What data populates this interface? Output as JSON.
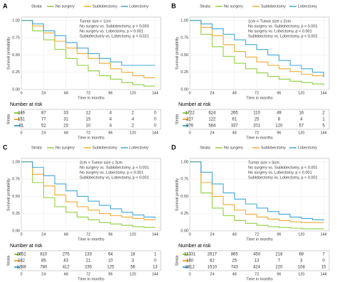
{
  "chart_data": [
    {
      "type": "line",
      "panel": "A",
      "legend_title": "Strata",
      "annotations": [
        "Tumor size < 1cm",
        "No surgery vs. Sublobectomy, p = 0.003",
        "No surgery vs. Lobectomy, p < 0.001",
        "Sublobectomy vs. Lobectomy, p = 0.021"
      ],
      "xlabel": "Time in months",
      "ylabel": "Survival probability",
      "xlim": [
        0,
        150
      ],
      "xticks": [
        0,
        24,
        48,
        72,
        96,
        120,
        144
      ],
      "ylim": [
        0,
        1.05
      ],
      "yticks": [
        {
          "value": 0,
          "label": "0.00"
        },
        {
          "value": 0.25,
          "label": "0.25"
        },
        {
          "value": 0.5,
          "label": "0.50"
        },
        {
          "value": 0.75,
          "label": "0.75"
        },
        {
          "value": 1,
          "label": "1.00"
        }
      ],
      "grid": true,
      "x": [
        0,
        12,
        24,
        36,
        48,
        60,
        72,
        84,
        96,
        108,
        120,
        132,
        144
      ],
      "series": [
        {
          "name": "No surgery",
          "color": "#8fd13f",
          "values": [
            1,
            0.85,
            0.72,
            0.58,
            0.45,
            0.35,
            0.27,
            0.2,
            0.15,
            0.1,
            0.07,
            0.05,
            0.05
          ]
        },
        {
          "name": "Sublobectomy",
          "color": "#f0a830",
          "values": [
            1,
            0.92,
            0.82,
            0.7,
            0.6,
            0.52,
            0.45,
            0.38,
            0.3,
            0.25,
            0.2,
            0.17,
            0.17
          ]
        },
        {
          "name": "Lobectomy",
          "color": "#3fa7d6",
          "values": [
            1,
            0.95,
            0.85,
            0.78,
            0.68,
            0.6,
            0.52,
            0.45,
            0.4,
            0.35,
            0.35,
            0.35,
            0.35
          ]
        }
      ],
      "risk_table": {
        "title": "Number at risk",
        "ylabel": "Strata",
        "rows": [
          [
            246,
            87,
            33,
            12,
            4,
            2,
            0
          ],
          [
            151,
            77,
            31,
            15,
            4,
            4,
            0
          ],
          [
            81,
            52,
            20,
            10,
            4,
            2,
            0
          ]
        ]
      }
    },
    {
      "type": "line",
      "panel": "B",
      "legend_title": "Strata",
      "annotations": [
        "1cm < Tumor size ≤ 2cm",
        "No surgery vs. Sublobectomy, p < 0.001",
        "No surgery vs. Lobectomy, p < 0.001",
        "Sublobectomy vs. Lobectomy, p < 0.001"
      ],
      "xlabel": "Time in months",
      "ylabel": "Survival probability",
      "xlim": [
        0,
        150
      ],
      "xticks": [
        0,
        24,
        48,
        72,
        96,
        120,
        144
      ],
      "ylim": [
        0,
        1.05
      ],
      "yticks": [
        {
          "value": 0,
          "label": "0.00"
        },
        {
          "value": 0.25,
          "label": "0.25"
        },
        {
          "value": 0.5,
          "label": "0.50"
        },
        {
          "value": 0.75,
          "label": "0.75"
        },
        {
          "value": 1,
          "label": "1.00"
        }
      ],
      "grid": true,
      "x": [
        0,
        12,
        24,
        36,
        48,
        60,
        72,
        84,
        96,
        108,
        120,
        132,
        144
      ],
      "series": [
        {
          "name": "No surgery",
          "color": "#8fd13f",
          "values": [
            1,
            0.8,
            0.62,
            0.48,
            0.38,
            0.3,
            0.24,
            0.19,
            0.15,
            0.12,
            0.1,
            0.08,
            0.06
          ]
        },
        {
          "name": "Sublobectomy",
          "color": "#f0a830",
          "values": [
            1,
            0.9,
            0.78,
            0.65,
            0.55,
            0.47,
            0.4,
            0.35,
            0.3,
            0.26,
            0.22,
            0.2,
            0.18
          ]
        },
        {
          "name": "Lobectomy",
          "color": "#3fa7d6",
          "values": [
            1,
            0.95,
            0.88,
            0.8,
            0.72,
            0.65,
            0.58,
            0.5,
            0.42,
            0.35,
            0.3,
            0.25,
            0.18
          ]
        }
      ],
      "risk_table": {
        "title": "Number at risk",
        "ylabel": "Strata",
        "rows": [
          [
            1722,
            624,
            265,
            110,
            49,
            16,
            2
          ],
          [
            227,
            122,
            61,
            25,
            8,
            4,
            1
          ],
          [
            876,
            584,
            337,
            201,
            120,
            57,
            5
          ]
        ]
      }
    },
    {
      "type": "line",
      "panel": "C",
      "legend_title": "Strata",
      "annotations": [
        "2cm < Tumor size ≤ 3cm",
        "No surgery vs. Sublobectomy, p < 0.001",
        "No surgery vs. Lobectomy, p < 0.001",
        "Sublobectomy vs. Lobectomy, p < 0.001"
      ],
      "xlabel": "Time in months",
      "ylabel": "Survival probability",
      "xlim": [
        0,
        150
      ],
      "xticks": [
        0,
        24,
        48,
        72,
        96,
        120,
        144
      ],
      "ylim": [
        0,
        1.05
      ],
      "yticks": [
        {
          "value": 0,
          "label": "0.00"
        },
        {
          "value": 0.25,
          "label": "0.25"
        },
        {
          "value": 0.5,
          "label": "0.50"
        },
        {
          "value": 0.75,
          "label": "0.75"
        },
        {
          "value": 1,
          "label": "1.00"
        }
      ],
      "grid": true,
      "x": [
        0,
        12,
        24,
        36,
        48,
        60,
        72,
        84,
        96,
        108,
        120,
        132,
        144
      ],
      "series": [
        {
          "name": "No surgery",
          "color": "#8fd13f",
          "values": [
            1,
            0.7,
            0.48,
            0.35,
            0.27,
            0.2,
            0.16,
            0.12,
            0.1,
            0.08,
            0.06,
            0.05,
            0.05
          ]
        },
        {
          "name": "Sublobectomy",
          "color": "#f0a830",
          "values": [
            1,
            0.82,
            0.65,
            0.52,
            0.42,
            0.35,
            0.3,
            0.25,
            0.22,
            0.2,
            0.18,
            0.16,
            0.15
          ]
        },
        {
          "name": "Lobectomy",
          "color": "#3fa7d6",
          "values": [
            1,
            0.92,
            0.8,
            0.68,
            0.58,
            0.5,
            0.43,
            0.37,
            0.32,
            0.27,
            0.23,
            0.2,
            0.18
          ]
        }
      ],
      "risk_table": {
        "title": "Number at risk",
        "ylabel": "Strata",
        "rows": [
          [
            2652,
            810,
            275,
            133,
            64,
            18,
            1
          ],
          [
            182,
            85,
            43,
            21,
            10,
            3,
            0
          ],
          [
            1288,
            780,
            412,
            235,
            125,
            56,
            13
          ]
        ]
      }
    },
    {
      "type": "line",
      "panel": "D",
      "legend_title": "Strata",
      "annotations": [
        "Tumor size > 3cm",
        "No surgery vs. Sublobectomy, p < 0.001",
        "No surgery vs. Lobectomy, p < 0.001",
        "Sublobectomy vs. Lobectomy, p < 0.001"
      ],
      "xlabel": "Time in months",
      "ylabel": "Survival probability",
      "xlim": [
        0,
        150
      ],
      "xticks": [
        0,
        24,
        48,
        72,
        96,
        120,
        144
      ],
      "ylim": [
        0,
        1.05
      ],
      "yticks": [
        {
          "value": 0,
          "label": "0.00"
        },
        {
          "value": 0.25,
          "label": "0.25"
        },
        {
          "value": 0.5,
          "label": "0.50"
        },
        {
          "value": 0.75,
          "label": "0.75"
        },
        {
          "value": 1,
          "label": "1.00"
        }
      ],
      "grid": true,
      "x": [
        0,
        12,
        24,
        36,
        48,
        60,
        72,
        84,
        96,
        108,
        120,
        132,
        144
      ],
      "series": [
        {
          "name": "No surgery",
          "color": "#8fd13f",
          "values": [
            1,
            0.55,
            0.33,
            0.22,
            0.15,
            0.11,
            0.08,
            0.06,
            0.05,
            0.04,
            0.03,
            0.03,
            0.03
          ]
        },
        {
          "name": "Sublobectomy",
          "color": "#f0a830",
          "values": [
            1,
            0.7,
            0.5,
            0.38,
            0.3,
            0.24,
            0.2,
            0.17,
            0.15,
            0.13,
            0.12,
            0.12,
            0.12
          ]
        },
        {
          "name": "Lobectomy",
          "color": "#3fa7d6",
          "values": [
            1,
            0.85,
            0.68,
            0.55,
            0.46,
            0.39,
            0.33,
            0.28,
            0.24,
            0.2,
            0.18,
            0.16,
            0.15
          ]
        }
      ],
      "risk_table": {
        "title": "Number at risk",
        "ylabel": "Strata",
        "rows": [
          [
            11331,
            2617,
            865,
            450,
            218,
            68,
            7
          ],
          [
            160,
            62,
            25,
            13,
            7,
            3,
            0
          ],
          [
            2812,
            1510,
            743,
            424,
            220,
            108,
            15
          ]
        ]
      }
    }
  ]
}
